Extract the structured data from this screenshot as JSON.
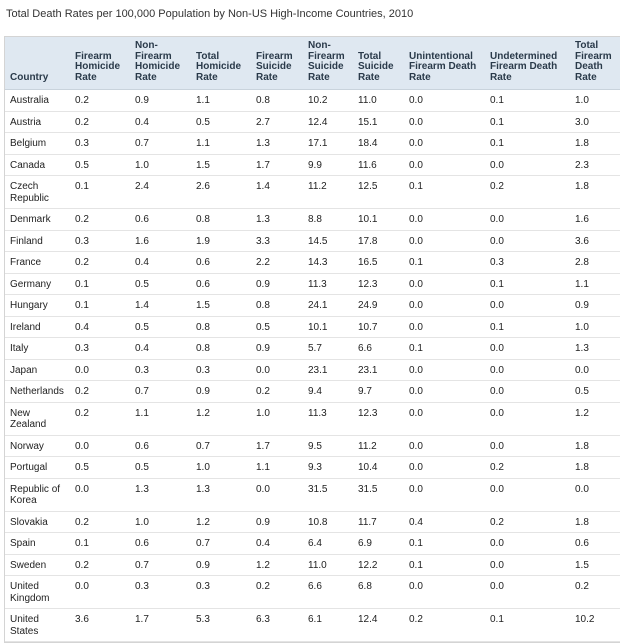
{
  "title": "Total Death Rates per 100,000 Population by Non-US High-Income Countries, 2010",
  "table": {
    "headers": [
      "Country",
      "Firearm Homicide Rate",
      "Non-Firearm Homicide Rate",
      "Total Homicide Rate",
      "Firearm Suicide Rate",
      "Non-Firearm Suicide Rate",
      "Total Suicide Rate",
      "Unintentional Firearm Death Rate",
      "Undetermined Firearm Death Rate",
      "Total Firearm Death Rate"
    ],
    "rows": [
      [
        "Australia",
        "0.2",
        "0.9",
        "1.1",
        "0.8",
        "10.2",
        "11.0",
        "0.0",
        "0.1",
        "1.0"
      ],
      [
        "Austria",
        "0.2",
        "0.4",
        "0.5",
        "2.7",
        "12.4",
        "15.1",
        "0.0",
        "0.1",
        "3.0"
      ],
      [
        "Belgium",
        "0.3",
        "0.7",
        "1.1",
        "1.3",
        "17.1",
        "18.4",
        "0.0",
        "0.1",
        "1.8"
      ],
      [
        "Canada",
        "0.5",
        "1.0",
        "1.5",
        "1.7",
        "9.9",
        "11.6",
        "0.0",
        "0.0",
        "2.3"
      ],
      [
        "Czech Republic",
        "0.1",
        "2.4",
        "2.6",
        "1.4",
        "11.2",
        "12.5",
        "0.1",
        "0.2",
        "1.8"
      ],
      [
        "Denmark",
        "0.2",
        "0.6",
        "0.8",
        "1.3",
        "8.8",
        "10.1",
        "0.0",
        "0.0",
        "1.6"
      ],
      [
        "Finland",
        "0.3",
        "1.6",
        "1.9",
        "3.3",
        "14.5",
        "17.8",
        "0.0",
        "0.0",
        "3.6"
      ],
      [
        "France",
        "0.2",
        "0.4",
        "0.6",
        "2.2",
        "14.3",
        "16.5",
        "0.1",
        "0.3",
        "2.8"
      ],
      [
        "Germany",
        "0.1",
        "0.5",
        "0.6",
        "0.9",
        "11.3",
        "12.3",
        "0.0",
        "0.1",
        "1.1"
      ],
      [
        "Hungary",
        "0.1",
        "1.4",
        "1.5",
        "0.8",
        "24.1",
        "24.9",
        "0.0",
        "0.0",
        "0.9"
      ],
      [
        "Ireland",
        "0.4",
        "0.5",
        "0.8",
        "0.5",
        "10.1",
        "10.7",
        "0.0",
        "0.1",
        "1.0"
      ],
      [
        "Italy",
        "0.3",
        "0.4",
        "0.8",
        "0.9",
        "5.7",
        "6.6",
        "0.1",
        "0.0",
        "1.3"
      ],
      [
        "Japan",
        "0.0",
        "0.3",
        "0.3",
        "0.0",
        "23.1",
        "23.1",
        "0.0",
        "0.0",
        "0.0"
      ],
      [
        "Netherlands",
        "0.2",
        "0.7",
        "0.9",
        "0.2",
        "9.4",
        "9.7",
        "0.0",
        "0.0",
        "0.5"
      ],
      [
        "New Zealand",
        "0.2",
        "1.1",
        "1.2",
        "1.0",
        "11.3",
        "12.3",
        "0.0",
        "0.0",
        "1.2"
      ],
      [
        "Norway",
        "0.0",
        "0.6",
        "0.7",
        "1.7",
        "9.5",
        "11.2",
        "0.0",
        "0.0",
        "1.8"
      ],
      [
        "Portugal",
        "0.5",
        "0.5",
        "1.0",
        "1.1",
        "9.3",
        "10.4",
        "0.0",
        "0.2",
        "1.8"
      ],
      [
        "Republic of Korea",
        "0.0",
        "1.3",
        "1.3",
        "0.0",
        "31.5",
        "31.5",
        "0.0",
        "0.0",
        "0.0"
      ],
      [
        "Slovakia",
        "0.2",
        "1.0",
        "1.2",
        "0.9",
        "10.8",
        "11.7",
        "0.4",
        "0.2",
        "1.8"
      ],
      [
        "Spain",
        "0.1",
        "0.6",
        "0.7",
        "0.4",
        "6.4",
        "6.9",
        "0.1",
        "0.0",
        "0.6"
      ],
      [
        "Sweden",
        "0.2",
        "0.7",
        "0.9",
        "1.2",
        "11.0",
        "12.2",
        "0.1",
        "0.0",
        "1.5"
      ],
      [
        "United Kingdom",
        "0.0",
        "0.3",
        "0.3",
        "0.2",
        "6.6",
        "6.8",
        "0.0",
        "0.0",
        "0.2"
      ],
      [
        "United States",
        "3.6",
        "1.7",
        "5.3",
        "6.3",
        "6.1",
        "12.4",
        "0.2",
        "0.1",
        "10.2"
      ]
    ]
  }
}
